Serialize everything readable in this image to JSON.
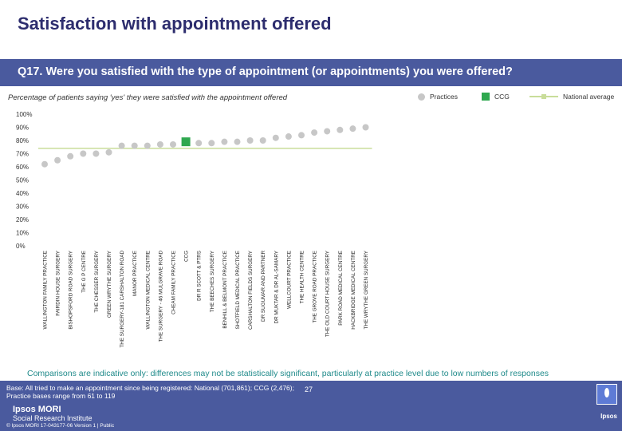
{
  "header": {
    "title": "Satisfaction with appointment offered",
    "question": "Q17. Were you satisfied with the type of appointment (or appointments) you were offered?",
    "subtitle": "Percentage of patients saying 'yes' they were satisfied with the appointment offered"
  },
  "colors": {
    "question_bar": "#4a5a9e",
    "practices": "#c7c7c7",
    "ccg": "#2fa84f",
    "national": "#c9dd9a",
    "footnote": "#1f8a8a"
  },
  "chart_data": {
    "type": "scatter",
    "title": "Percentage of patients saying 'yes' they were satisfied with the appointment offered",
    "ylim": [
      0,
      100
    ],
    "yticks": [
      "0%",
      "10%",
      "20%",
      "30%",
      "40%",
      "50%",
      "60%",
      "70%",
      "80%",
      "90%",
      "100%"
    ],
    "series": [
      {
        "name": "Practices"
      },
      {
        "name": "CCG"
      },
      {
        "name": "National average"
      }
    ],
    "national_average": 74,
    "categories": [
      "WALLINGTON FAMILY PRACTICE",
      "FAIRDIN HOUSE SURGERY",
      "BISHOPSFORD ROAD SURGERY",
      "THE G P CENTRE",
      "THE CHESSER SURGERY",
      "GREEN WRYTHE SURGERY",
      "THE SURGERY-181 CARSHALTON ROAD",
      "MANOR PRACTICE",
      "WALLINGTON MEDICAL CENTRE",
      "THE SURGERY - 46 MULGRAVE ROAD",
      "CHEAM FAMILY PRACTICE",
      "CCG",
      "DR R SCOTT & PTRS",
      "THE BEECHES SURGERY",
      "BENHILL & BELMONT PRACTICE",
      "SHOTFIELD MEDICAL PRACTICE",
      "CARSHALTON FIELDS SURGERY",
      "DR SUGUMAR AND PARTNER",
      "DR MUKTAR & DR AL-SAMARY",
      "WELLCOURT PRACTICE",
      "THE HEALTH CENTRE",
      "THE GROVE ROAD PRACTICE",
      "THE OLD COURT HOUSE SURGERY",
      "PARK ROAD MEDICAL CENTRE",
      "HACKBRIDGE MEDICAL CENTRE",
      "THE WRYTHE GREEN SURGERY"
    ],
    "values": [
      62,
      65,
      68,
      70,
      70,
      71,
      76,
      76,
      76,
      77,
      77,
      79,
      78,
      78,
      79,
      79,
      80,
      80,
      82,
      83,
      84,
      86,
      87,
      88,
      89,
      90
    ],
    "ccg_index": 11
  },
  "footer": {
    "comparison_note": "Comparisons are indicative only: differences may not be statistically significant, particularly at practice level due to low numbers of responses",
    "base_line1": "Base: All tried to make an appointment since being registered: National (701,861); CCG (2,476);",
    "base_line2": "Practice bases range from 61 to 119",
    "page_number": "27",
    "logo_line1": "Ipsos MORI",
    "logo_line2": "Social Research Institute",
    "copyright": "© Ipsos MORI     17-043177-06 Version 1 | Public",
    "brand": "Ipsos"
  }
}
